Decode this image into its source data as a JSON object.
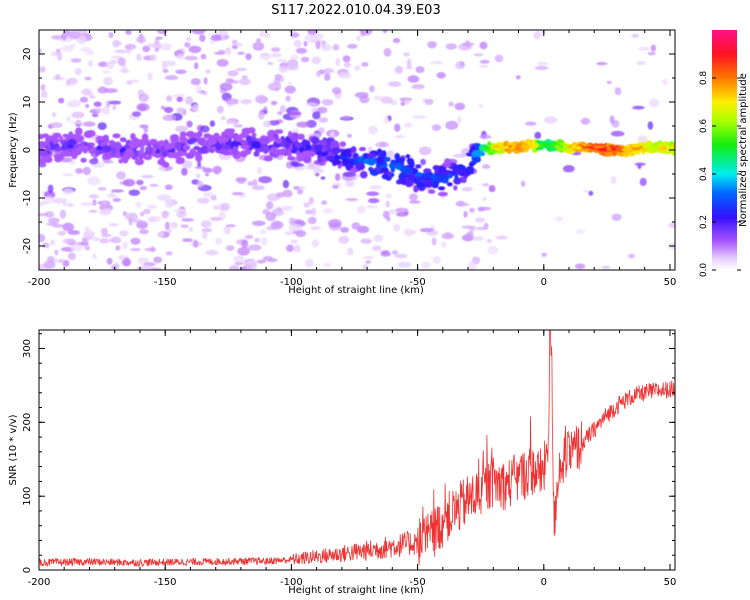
{
  "title": "S117.2022.010.04.39.E03",
  "colors": {
    "snr_line": "#ee3333",
    "axis": "#000000"
  },
  "chart_data": [
    {
      "type": "heatmap",
      "title": "S117.2022.010.04.39.E03",
      "xlabel": "Height of straight line (km)",
      "ylabel": "Frequency (Hz)",
      "xlim": [
        -200,
        52
      ],
      "ylim": [
        -25,
        25
      ],
      "x_ticks": [
        -200,
        -150,
        -100,
        -50,
        0,
        50
      ],
      "y_ticks": [
        -20,
        -10,
        0,
        10,
        20
      ],
      "colorbar": {
        "label": "Normalized spectral amplitude",
        "range": [
          0.0,
          1.0
        ],
        "ticks": [
          0.0,
          0.2,
          0.4,
          0.6,
          0.8
        ],
        "colormap": "rainbow (white-violet-blue-cyan-green-yellow-red-magenta)"
      },
      "ridge": {
        "description": "frequency of the main spectral ridge vs height",
        "x": [
          -200,
          -190,
          -180,
          -170,
          -160,
          -150,
          -140,
          -130,
          -120,
          -110,
          -100,
          -90,
          -80,
          -75,
          -70,
          -65,
          -60,
          -55,
          -50,
          -45,
          -40,
          -35,
          -32,
          -28,
          -25,
          -20,
          -15,
          -10,
          -5,
          0,
          5,
          10,
          15,
          20,
          25,
          30,
          35,
          40,
          45,
          52
        ],
        "y": [
          0,
          1,
          0.5,
          0,
          0,
          0,
          1,
          1,
          1.5,
          1,
          1,
          0,
          -1,
          -2,
          -2.5,
          -3,
          -3.5,
          -4,
          -5,
          -6,
          -6,
          -5,
          -4,
          -2,
          0,
          0.5,
          0.5,
          0.5,
          1,
          1,
          1,
          0.5,
          0.5,
          0.5,
          0,
          0,
          0,
          0.5,
          0.5,
          0.5
        ],
        "amplitude": [
          0.22,
          0.22,
          0.2,
          0.22,
          0.22,
          0.2,
          0.22,
          0.22,
          0.22,
          0.24,
          0.24,
          0.26,
          0.3,
          0.32,
          0.34,
          0.34,
          0.36,
          0.34,
          0.33,
          0.33,
          0.33,
          0.3,
          0.3,
          0.32,
          0.42,
          0.7,
          0.8,
          0.8,
          0.8,
          0.5,
          0.62,
          0.74,
          0.84,
          0.88,
          0.9,
          0.85,
          0.8,
          0.75,
          0.72,
          0.7
        ]
      }
    },
    {
      "type": "line",
      "xlabel": "Height of straight line (km)",
      "ylabel": "SNR (10 * v/v)",
      "xlim": [
        -200,
        52
      ],
      "ylim": [
        0,
        325
      ],
      "x_ticks": [
        -200,
        -150,
        -100,
        -50,
        0,
        50
      ],
      "y_ticks": [
        0,
        100,
        200,
        300
      ],
      "series": [
        {
          "x": [
            -200,
            -180,
            -160,
            -140,
            -120,
            -110,
            -100,
            -90,
            -80,
            -70,
            -60,
            -50,
            -45,
            -40,
            -35,
            -30,
            -25,
            -20,
            -15,
            -10,
            -5,
            0,
            2,
            3,
            4,
            6,
            10,
            15,
            20,
            25,
            30,
            35,
            40,
            45,
            52
          ],
          "y": [
            10,
            11,
            10,
            11,
            12,
            12,
            14,
            18,
            22,
            26,
            32,
            38,
            45,
            65,
            80,
            95,
            105,
            120,
            115,
            125,
            135,
            130,
            190,
            320,
            60,
            140,
            155,
            170,
            190,
            210,
            225,
            235,
            240,
            243,
            245
          ]
        }
      ]
    }
  ]
}
